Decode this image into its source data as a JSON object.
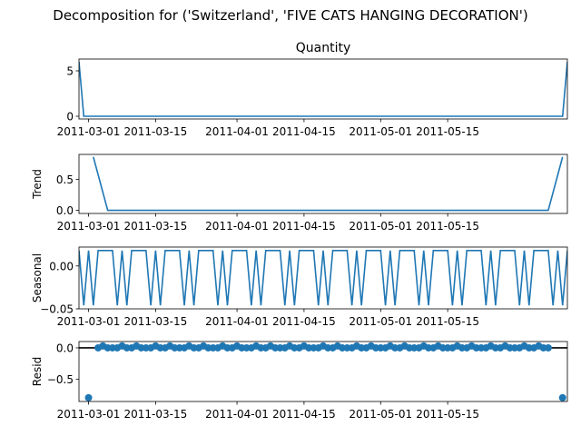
{
  "figure": {
    "suptitle": "Decomposition for ('Switzerland', 'FIVE CATS HANGING DECORATION')"
  },
  "chart_data": [
    {
      "type": "line",
      "panel": "observed",
      "title": "Quantity",
      "ylabel": "",
      "color": "#1f77b4",
      "x_start": "2011-02-27",
      "x_end": "2011-06-09",
      "xlim": [
        "2011-02-27",
        "2011-06-09"
      ],
      "ylim": [
        -0.3,
        6.3
      ],
      "yticks": [
        0,
        5
      ],
      "xticks": [
        "2011-03-01",
        "2011-03-15",
        "2011-04-01",
        "2011-04-15",
        "2011-05-01",
        "2011-05-15"
      ],
      "points": [
        {
          "x": "2011-02-27",
          "y": 6
        },
        {
          "x": "2011-02-28",
          "y": 0
        },
        {
          "x": "2011-06-08",
          "y": 0
        },
        {
          "x": "2011-06-09",
          "y": 6
        }
      ]
    },
    {
      "type": "line",
      "panel": "trend",
      "title": "",
      "ylabel": "Trend",
      "color": "#1f77b4",
      "xlim": [
        "2011-02-27",
        "2011-06-09"
      ],
      "ylim": [
        -0.05,
        0.9
      ],
      "yticks": [
        0.0,
        0.5
      ],
      "ytick_labels": [
        "0.0",
        "0.5"
      ],
      "xticks": [
        "2011-03-01",
        "2011-03-15",
        "2011-04-01",
        "2011-04-15",
        "2011-05-01",
        "2011-05-15"
      ],
      "points": [
        {
          "x": "2011-03-02",
          "y": 0.86
        },
        {
          "x": "2011-03-05",
          "y": 0
        },
        {
          "x": "2011-06-05",
          "y": 0
        },
        {
          "x": "2011-06-08",
          "y": 0.86
        }
      ]
    },
    {
      "type": "line",
      "panel": "seasonal",
      "title": "",
      "ylabel": "Seasonal",
      "color": "#1f77b4",
      "xlim": [
        "2011-02-27",
        "2011-06-09"
      ],
      "ylim": [
        -0.05,
        0.022
      ],
      "yticks": [
        0.0,
        -0.05
      ],
      "ytick_labels": [
        "0.00",
        "−0.05"
      ],
      "xticks": [
        "2011-03-01",
        "2011-03-15",
        "2011-04-01",
        "2011-04-15",
        "2011-05-01",
        "2011-05-15"
      ],
      "start": "2011-02-27",
      "period_values": [
        0.018,
        -0.046,
        0.018,
        -0.046,
        0.018,
        0.018,
        0.018
      ],
      "n_days": 103
    },
    {
      "type": "scatter",
      "panel": "resid",
      "title": "",
      "ylabel": "Resid",
      "color": "#1f77b4",
      "xlim": [
        "2011-02-27",
        "2011-06-09"
      ],
      "ylim": [
        -0.85,
        0.1
      ],
      "yticks": [
        0.0,
        -0.5
      ],
      "ytick_labels": [
        "0.0",
        "−0.5"
      ],
      "xticks": [
        "2011-03-01",
        "2011-03-15",
        "2011-04-01",
        "2011-04-15",
        "2011-05-01",
        "2011-05-15"
      ],
      "zero_line": true,
      "start": "2011-03-03",
      "period_values": [
        0.0,
        0.03,
        0.0,
        0.0,
        0.0,
        0.03,
        0.0
      ],
      "n_days": 95,
      "outliers": [
        {
          "x": "2011-03-01",
          "y": -0.79
        },
        {
          "x": "2011-06-08",
          "y": -0.79
        }
      ]
    }
  ]
}
